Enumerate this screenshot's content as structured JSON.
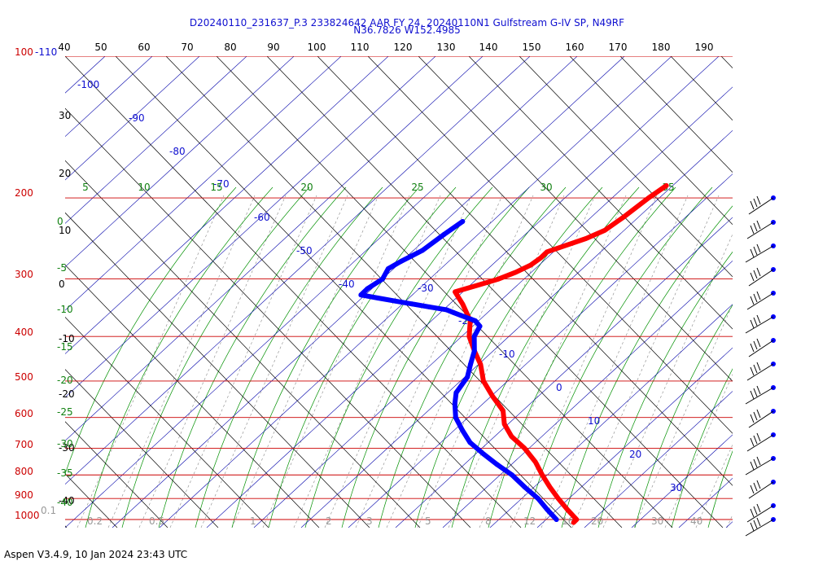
{
  "window": {
    "title_line1": "D20240110_231637_P.3 233824642 AAR FY 24, 20240110N1 Gulfstream G-IV SP, N49RF",
    "title_line2": "N36.7826 W152.4985",
    "footer": "Aspen V3.4.9, 10 Jan 2024  23:43 UTC"
  },
  "chart_data": {
    "type": "skew-t",
    "pressure_labels": [
      "100-110",
      "200",
      "300",
      "400",
      "500",
      "600",
      "700",
      "800",
      "900",
      "1000"
    ],
    "pressure_levels_hpa": [
      100,
      200,
      300,
      400,
      500,
      600,
      700,
      800,
      900,
      1000
    ],
    "top_axis_labels": [
      "40",
      "50",
      "60",
      "70",
      "80",
      "90",
      "100",
      "110",
      "120",
      "130",
      "140",
      "150",
      "160",
      "170",
      "180",
      "190"
    ],
    "left_black_labels": [
      "40",
      "30",
      "20",
      "10",
      "0",
      "-10",
      "-20",
      "-30",
      "-40"
    ],
    "dry_adiabat_labels": [
      "-100",
      "-90",
      "-80",
      "-70",
      "-60",
      "-50",
      "-40",
      "-30",
      "-20",
      "-10",
      "0",
      "10",
      "20",
      "30"
    ],
    "moist_adiabat_labels": [
      "5",
      "10",
      "15",
      "20",
      "25",
      "30",
      "35"
    ],
    "left_green_labels": [
      "0",
      "-5",
      "-10",
      "-15",
      "-20",
      "-25",
      "-30",
      "-35",
      "-40"
    ],
    "mixing_ratio_labels": [
      "0.1",
      "0.2",
      "0.5",
      "1",
      "2",
      "3",
      "5",
      "8",
      "12",
      "16",
      "20",
      "30",
      "40"
    ],
    "temperature_profile": [
      {
        "p": 188,
        "t": -44
      },
      {
        "p": 200,
        "t": -45
      },
      {
        "p": 220,
        "t": -46
      },
      {
        "p": 235,
        "t": -47
      },
      {
        "p": 245,
        "t": -49
      },
      {
        "p": 255,
        "t": -52
      },
      {
        "p": 262,
        "t": -54
      },
      {
        "p": 270,
        "t": -54
      },
      {
        "p": 280,
        "t": -54.5
      },
      {
        "p": 290,
        "t": -56
      },
      {
        "p": 300,
        "t": -58
      },
      {
        "p": 310,
        "t": -61
      },
      {
        "p": 320,
        "t": -64
      },
      {
        "p": 340,
        "t": -60
      },
      {
        "p": 370,
        "t": -55
      },
      {
        "p": 400,
        "t": -52
      },
      {
        "p": 430,
        "t": -48
      },
      {
        "p": 460,
        "t": -44
      },
      {
        "p": 500,
        "t": -40
      },
      {
        "p": 540,
        "t": -35
      },
      {
        "p": 580,
        "t": -30
      },
      {
        "p": 620,
        "t": -27
      },
      {
        "p": 660,
        "t": -23
      },
      {
        "p": 700,
        "t": -18
      },
      {
        "p": 750,
        "t": -13
      },
      {
        "p": 800,
        "t": -9
      },
      {
        "p": 850,
        "t": -5
      },
      {
        "p": 900,
        "t": -1
      },
      {
        "p": 950,
        "t": 3
      },
      {
        "p": 1000,
        "t": 7
      },
      {
        "p": 1015,
        "t": 7
      }
    ],
    "dewpoint_profile": [
      {
        "p": 225,
        "d": -77
      },
      {
        "p": 240,
        "d": -78
      },
      {
        "p": 260,
        "d": -79
      },
      {
        "p": 275,
        "d": -81
      },
      {
        "p": 285,
        "d": -82
      },
      {
        "p": 300,
        "d": -81
      },
      {
        "p": 315,
        "d": -82
      },
      {
        "p": 325,
        "d": -82
      },
      {
        "p": 330,
        "d": -78
      },
      {
        "p": 335,
        "d": -74
      },
      {
        "p": 340,
        "d": -70
      },
      {
        "p": 345,
        "d": -66
      },
      {
        "p": 350,
        "d": -62
      },
      {
        "p": 355,
        "d": -60
      },
      {
        "p": 360,
        "d": -58
      },
      {
        "p": 365,
        "d": -56
      },
      {
        "p": 370,
        "d": -54
      },
      {
        "p": 380,
        "d": -52
      },
      {
        "p": 400,
        "d": -51
      },
      {
        "p": 430,
        "d": -48
      },
      {
        "p": 460,
        "d": -46
      },
      {
        "p": 490,
        "d": -44
      },
      {
        "p": 530,
        "d": -43
      },
      {
        "p": 560,
        "d": -41
      },
      {
        "p": 600,
        "d": -38
      },
      {
        "p": 640,
        "d": -34
      },
      {
        "p": 680,
        "d": -30
      },
      {
        "p": 720,
        "d": -25
      },
      {
        "p": 760,
        "d": -20
      },
      {
        "p": 800,
        "d": -15
      },
      {
        "p": 850,
        "d": -10
      },
      {
        "p": 900,
        "d": -5
      },
      {
        "p": 950,
        "d": -1
      },
      {
        "p": 1000,
        "d": 3
      }
    ],
    "colors": {
      "temperature": "#ff0000",
      "dewpoint": "#0000ff",
      "isobar": "#cc0000",
      "isotherm": "#000000",
      "dry_adiabat": "#0000aa",
      "moist_adiabat": "#009000",
      "mixing_ratio": "#000000"
    }
  }
}
